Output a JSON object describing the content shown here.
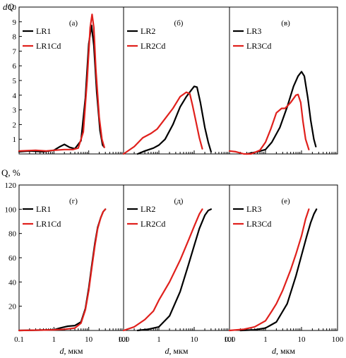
{
  "figure": {
    "top_ylabel": "dQ",
    "bottom_ylabel": "Q, %",
    "xlabel": "d, мкм",
    "x_tick_labels": [
      "0.1",
      "1",
      "10",
      "100"
    ]
  },
  "colors": {
    "sample": "#000000",
    "cd": "#e0201c"
  },
  "chart_data": [
    {
      "type": "line",
      "panel": "(а)",
      "x_scale": "log",
      "xlim": [
        0.1,
        100
      ],
      "ylim": [
        0,
        10
      ],
      "y_ticks": [
        1,
        2,
        3,
        4,
        5,
        6,
        7,
        8,
        9,
        10
      ],
      "legend": "top-left",
      "series": [
        {
          "name": "LR1",
          "color": "#000000",
          "points": [
            [
              0.1,
              0.15
            ],
            [
              0.2,
              0.2
            ],
            [
              0.5,
              0.15
            ],
            [
              1.0,
              0.25
            ],
            [
              1.5,
              0.5
            ],
            [
              2.0,
              0.65
            ],
            [
              2.8,
              0.45
            ],
            [
              4,
              0.35
            ],
            [
              6,
              0.9
            ],
            [
              8,
              3.8
            ],
            [
              10,
              7.5
            ],
            [
              12,
              8.75
            ],
            [
              14,
              7.4
            ],
            [
              17,
              4.2
            ],
            [
              21,
              1.6
            ],
            [
              25,
              0.6
            ],
            [
              28,
              0.45
            ]
          ]
        },
        {
          "name": "LR1Cd",
          "color": "#e0201c",
          "points": [
            [
              0.1,
              0.2
            ],
            [
              0.3,
              0.25
            ],
            [
              0.6,
              0.2
            ],
            [
              1.0,
              0.25
            ],
            [
              2.0,
              0.3
            ],
            [
              3.5,
              0.3
            ],
            [
              5,
              0.4
            ],
            [
              7,
              1.5
            ],
            [
              9,
              5.0
            ],
            [
              11,
              8.6
            ],
            [
              12.5,
              9.5
            ],
            [
              14,
              8.6
            ],
            [
              16,
              5.8
            ],
            [
              20,
              2.5
            ],
            [
              24,
              1.0
            ],
            [
              28,
              0.45
            ]
          ]
        }
      ]
    },
    {
      "type": "line",
      "panel": "(б)",
      "x_scale": "log",
      "xlim": [
        0.1,
        100
      ],
      "ylim": [
        0,
        10
      ],
      "legend": "top-left",
      "series": [
        {
          "name": "LR2",
          "color": "#000000",
          "points": [
            [
              0.25,
              0.0
            ],
            [
              0.4,
              0.2
            ],
            [
              0.7,
              0.4
            ],
            [
              1.0,
              0.6
            ],
            [
              1.5,
              1.0
            ],
            [
              2.5,
              2.0
            ],
            [
              4,
              3.2
            ],
            [
              6,
              3.9
            ],
            [
              8,
              4.3
            ],
            [
              10,
              4.6
            ],
            [
              12,
              4.55
            ],
            [
              15,
              3.5
            ],
            [
              20,
              1.8
            ],
            [
              25,
              0.8
            ],
            [
              30,
              0.15
            ]
          ]
        },
        {
          "name": "LR2Cd",
          "color": "#e0201c",
          "points": [
            [
              0.1,
              0.0
            ],
            [
              0.2,
              0.5
            ],
            [
              0.35,
              1.1
            ],
            [
              0.6,
              1.4
            ],
            [
              0.9,
              1.7
            ],
            [
              1.5,
              2.4
            ],
            [
              2.5,
              3.1
            ],
            [
              4,
              3.9
            ],
            [
              6,
              4.2
            ],
            [
              7.5,
              4.1
            ],
            [
              9,
              3.3
            ],
            [
              11,
              2.3
            ],
            [
              14,
              1.1
            ],
            [
              17,
              0.35
            ]
          ]
        }
      ]
    },
    {
      "type": "line",
      "panel": "(в)",
      "x_scale": "log",
      "xlim": [
        0.1,
        100
      ],
      "ylim": [
        0,
        10
      ],
      "legend": "top-left",
      "series": [
        {
          "name": "LR3",
          "color": "#000000",
          "points": [
            [
              0.3,
              0.0
            ],
            [
              0.6,
              0.15
            ],
            [
              1.0,
              0.3
            ],
            [
              1.5,
              0.8
            ],
            [
              2.5,
              1.8
            ],
            [
              4,
              3.2
            ],
            [
              6,
              4.6
            ],
            [
              8,
              5.3
            ],
            [
              10,
              5.6
            ],
            [
              12,
              5.3
            ],
            [
              15,
              3.8
            ],
            [
              18,
              2.3
            ],
            [
              22,
              1.0
            ],
            [
              25,
              0.5
            ]
          ]
        },
        {
          "name": "LR3Cd",
          "color": "#e0201c",
          "points": [
            [
              0.1,
              0.2
            ],
            [
              0.15,
              0.15
            ],
            [
              0.25,
              0.0
            ],
            [
              0.4,
              0.0
            ],
            [
              0.7,
              0.25
            ],
            [
              1.0,
              0.8
            ],
            [
              1.4,
              1.7
            ],
            [
              2.0,
              2.8
            ],
            [
              2.8,
              3.1
            ],
            [
              3.5,
              3.1
            ],
            [
              5,
              3.5
            ],
            [
              7,
              4.0
            ],
            [
              8,
              4.05
            ],
            [
              9.5,
              3.5
            ],
            [
              11,
              2.2
            ],
            [
              13,
              1.0
            ],
            [
              16,
              0.3
            ]
          ]
        }
      ]
    },
    {
      "type": "line",
      "panel": "(г)",
      "x_scale": "log",
      "xlim": [
        0.1,
        100
      ],
      "ylim": [
        0,
        120
      ],
      "y_ticks": [
        20,
        40,
        60,
        80,
        100,
        120
      ],
      "legend": "top-left",
      "series": [
        {
          "name": "LR1",
          "color": "#000000",
          "points": [
            [
              0.1,
              0
            ],
            [
              1.0,
              0.5
            ],
            [
              1.5,
              2
            ],
            [
              2.5,
              3.5
            ],
            [
              4,
              4
            ],
            [
              6,
              7
            ],
            [
              8,
              18
            ],
            [
              10,
              35
            ],
            [
              12,
              52
            ],
            [
              15,
              72
            ],
            [
              18,
              85
            ],
            [
              22,
              93
            ],
            [
              26,
              98
            ],
            [
              30,
              100
            ]
          ]
        },
        {
          "name": "LR1Cd",
          "color": "#e0201c",
          "points": [
            [
              0.1,
              0
            ],
            [
              1.0,
              0.5
            ],
            [
              2,
              1
            ],
            [
              4,
              2
            ],
            [
              6,
              6
            ],
            [
              8,
              17
            ],
            [
              10,
              33
            ],
            [
              12,
              50
            ],
            [
              15,
              70
            ],
            [
              18,
              84
            ],
            [
              22,
              93
            ],
            [
              26,
              98
            ],
            [
              30,
              100
            ]
          ]
        }
      ]
    },
    {
      "type": "line",
      "panel": "(д)",
      "x_scale": "log",
      "xlim": [
        0.1,
        100
      ],
      "ylim": [
        0,
        120
      ],
      "legend": "top-left",
      "series": [
        {
          "name": "LR2",
          "color": "#000000",
          "points": [
            [
              0.25,
              0
            ],
            [
              0.5,
              1
            ],
            [
              1,
              3
            ],
            [
              2,
              12
            ],
            [
              4,
              32
            ],
            [
              7,
              55
            ],
            [
              10,
              70
            ],
            [
              14,
              84
            ],
            [
              20,
              95
            ],
            [
              25,
              99
            ],
            [
              30,
              100
            ]
          ]
        },
        {
          "name": "LR2Cd",
          "color": "#e0201c",
          "points": [
            [
              0.1,
              0
            ],
            [
              0.2,
              3
            ],
            [
              0.4,
              9
            ],
            [
              0.7,
              16
            ],
            [
              1,
              25
            ],
            [
              2,
              40
            ],
            [
              4,
              58
            ],
            [
              7,
              75
            ],
            [
              10,
              86
            ],
            [
              14,
              96
            ],
            [
              17,
              100
            ]
          ]
        }
      ]
    },
    {
      "type": "line",
      "panel": "(е)",
      "x_scale": "log",
      "xlim": [
        0.1,
        100
      ],
      "ylim": [
        0,
        120
      ],
      "legend": "top-left",
      "series": [
        {
          "name": "LR3",
          "color": "#000000",
          "points": [
            [
              0.2,
              0
            ],
            [
              0.5,
              0.5
            ],
            [
              1,
              2
            ],
            [
              2,
              7
            ],
            [
              4,
              22
            ],
            [
              7,
              45
            ],
            [
              10,
              62
            ],
            [
              14,
              78
            ],
            [
              18,
              89
            ],
            [
              22,
              96
            ],
            [
              26,
              100
            ]
          ]
        },
        {
          "name": "LR3Cd",
          "color": "#e0201c",
          "points": [
            [
              0.1,
              0
            ],
            [
              0.25,
              1
            ],
            [
              0.5,
              3
            ],
            [
              1,
              8
            ],
            [
              1.5,
              16
            ],
            [
              2,
              22
            ],
            [
              3,
              33
            ],
            [
              5,
              50
            ],
            [
              7,
              63
            ],
            [
              10,
              78
            ],
            [
              13,
              92
            ],
            [
              16,
              100
            ]
          ]
        }
      ]
    }
  ]
}
